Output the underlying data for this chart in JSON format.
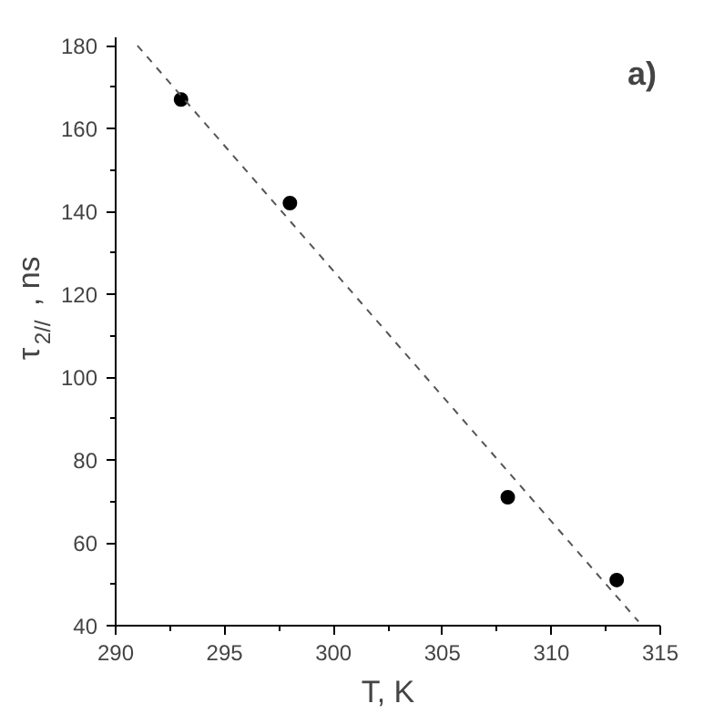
{
  "chart_data": {
    "type": "scatter",
    "xlabel": "T, K",
    "ylabel": "τ$_{2//}$, ns",
    "annotations": [
      "a)"
    ],
    "xlim": [
      290,
      315
    ],
    "xticks": [
      290,
      295,
      300,
      305,
      310,
      315
    ],
    "ylim": [
      40,
      182
    ],
    "yticks": [
      40,
      60,
      80,
      100,
      120,
      140,
      160,
      180
    ],
    "grid": false,
    "marker": "circle",
    "series": [
      {
        "color": "#000000",
        "x": [
          293,
          298,
          308,
          313
        ],
        "values": [
          167,
          142,
          71,
          51
        ]
      },
      {
        "type": "line",
        "line_style": "dashed",
        "marker": "none",
        "color": "#555555",
        "x": [
          291,
          314
        ],
        "values": [
          180,
          41
        ]
      }
    ]
  }
}
